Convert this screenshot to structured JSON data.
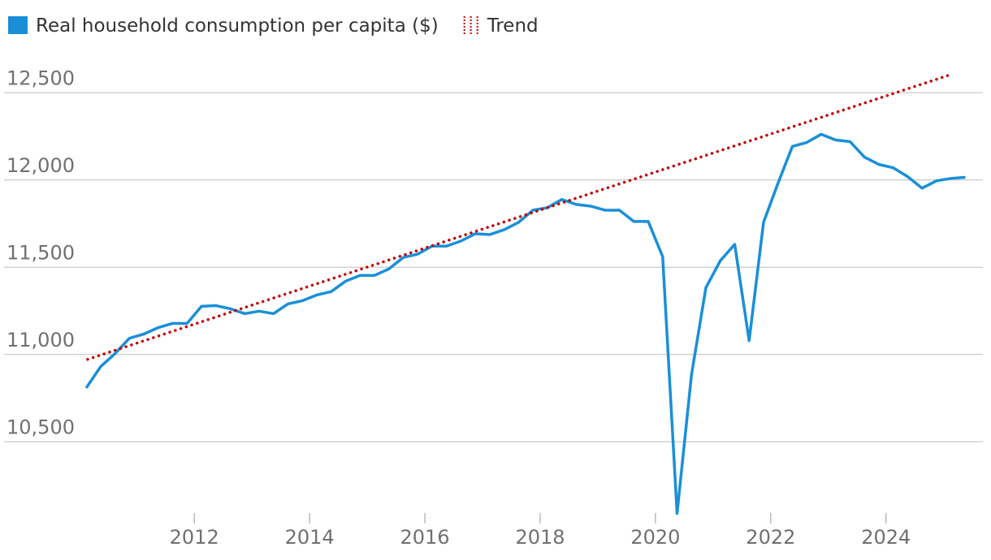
{
  "chart_data": {
    "type": "line",
    "series": [
      {
        "name": "Real household consumption per capita ($)",
        "color": "#1a8fd8",
        "style": "solid",
        "x": [
          2010.125,
          2010.375,
          2010.625,
          2010.875,
          2011.125,
          2011.375,
          2011.625,
          2011.875,
          2012.125,
          2012.375,
          2012.625,
          2012.875,
          2013.125,
          2013.375,
          2013.625,
          2013.875,
          2014.125,
          2014.375,
          2014.625,
          2014.875,
          2015.125,
          2015.375,
          2015.625,
          2015.875,
          2016.125,
          2016.375,
          2016.625,
          2016.875,
          2017.125,
          2017.375,
          2017.625,
          2017.875,
          2018.125,
          2018.375,
          2018.625,
          2018.875,
          2019.125,
          2019.375,
          2019.625,
          2019.875,
          2020.125,
          2020.375,
          2020.625,
          2020.875,
          2021.125,
          2021.375,
          2021.625,
          2021.875,
          2022.125,
          2022.375,
          2022.625,
          2022.875,
          2023.125,
          2023.375,
          2023.625,
          2023.875,
          2024.125,
          2024.375,
          2024.625,
          2024.875,
          2025.125,
          2025.375
        ],
        "values": [
          10808,
          10930,
          11005,
          11093,
          11117,
          11154,
          11178,
          11178,
          11276,
          11280,
          11262,
          11234,
          11248,
          11234,
          11290,
          11308,
          11341,
          11360,
          11420,
          11453,
          11453,
          11490,
          11556,
          11575,
          11621,
          11621,
          11650,
          11692,
          11687,
          11715,
          11757,
          11827,
          11841,
          11888,
          11860,
          11850,
          11827,
          11827,
          11762,
          11762,
          11561,
          10089,
          10883,
          11383,
          11537,
          11631,
          11079,
          11757,
          11981,
          12192,
          12215,
          12262,
          12229,
          12220,
          12131,
          12089,
          12070,
          12019,
          11953,
          11995,
          12009,
          12015
        ]
      },
      {
        "name": "Trend",
        "color": "#c00000",
        "style": "dotted",
        "x": [
          2010.15,
          2025.15
        ],
        "values": [
          10972,
          12607
        ]
      }
    ],
    "xlim": [
      2008.7,
      2025.68
    ],
    "xticks": [
      2012,
      2014,
      2016,
      2018,
      2020,
      2022,
      2024
    ],
    "ylim": [
      10050,
      12650
    ],
    "yticks": [
      {
        "value": 10500,
        "label": "10,500"
      },
      {
        "value": 11000,
        "label": "11,000"
      },
      {
        "value": 11500,
        "label": "11,500"
      },
      {
        "value": 12000,
        "label": "12,000"
      },
      {
        "value": 12500,
        "label": "12,500"
      }
    ],
    "grid": true
  }
}
